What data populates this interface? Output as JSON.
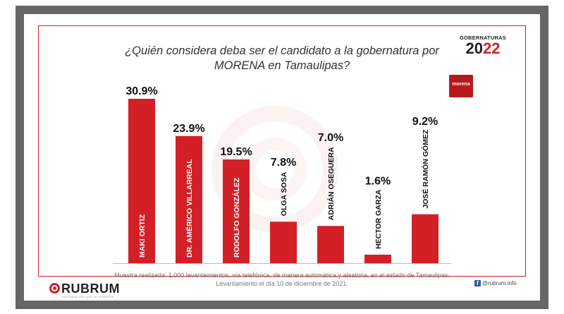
{
  "header": {
    "title_line1": "¿Quién considera deba ser el candidato a la gobernatura por",
    "title_line2": "MORENA en Tamaulipas?",
    "badge_small": "GOBERNATURAS",
    "badge_year_a": "20",
    "badge_year_b": "22",
    "party_logo": "morena"
  },
  "chart_data": {
    "type": "bar",
    "title": "¿Quién considera deba ser el candidato a la gobernatura por MORENA en Tamaulipas?",
    "categories": [
      "MAKI ORTIZ",
      "DR. AMÉRICO VILLARREAL",
      "RODOLFO GONZÁLEZ",
      "OLGA SOSA",
      "ADRIÁN OSEGUERA",
      "HECTOR GARZA",
      "JOSÉ RAMÓN GÓMEZ"
    ],
    "values": [
      30.9,
      23.9,
      19.5,
      7.8,
      7.0,
      1.6,
      9.2
    ],
    "value_labels": [
      "30.9%",
      "23.9%",
      "19.5%",
      "7.8%",
      "7.0%",
      "1.6%",
      "9.2%"
    ],
    "ylim": [
      0,
      30.9
    ],
    "bar_color": "#d32027",
    "grid": false,
    "legend": false
  },
  "footer": {
    "note_line1": "Muestra realizada: 1,000 levantamientos, vía telefónica, de manera automática y aleatoria, en el estado de Tamaulipas.",
    "note_line2": "Levantamiento el día 10 de diciembre  de 2021.",
    "social_icon": "facebook-icon",
    "social_handle": "@rubrum.info",
    "brand": "RUBRUM",
    "brand_tagline": "INFORMACIÓN QUE SE PONDERA"
  },
  "colors": {
    "accent": "#d32027",
    "frame": "#666666"
  }
}
